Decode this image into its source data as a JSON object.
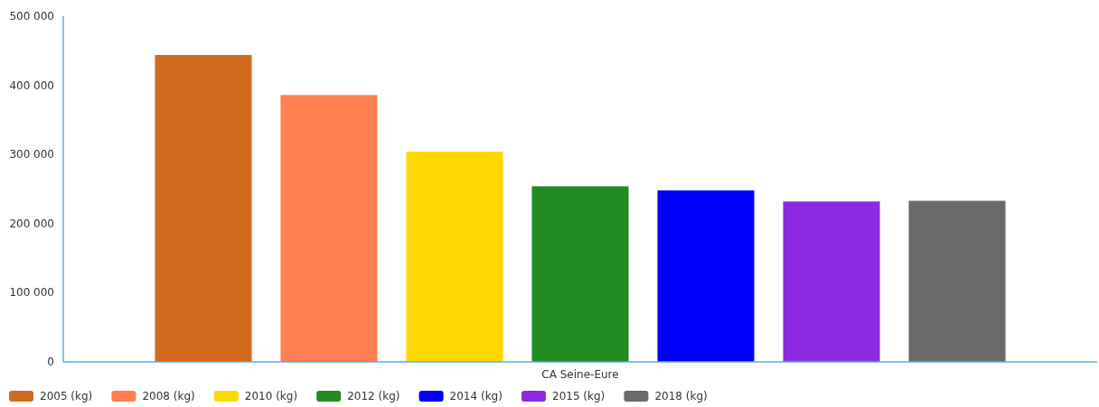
{
  "chart_data": {
    "type": "bar",
    "categories": [
      "CA Seine-Eure"
    ],
    "series": [
      {
        "name": "2005 (kg)",
        "color": "#d2691e",
        "values": [
          444000
        ]
      },
      {
        "name": "2008 (kg)",
        "color": "#ff7f50",
        "values": [
          386000
        ]
      },
      {
        "name": "2010 (kg)",
        "color": "#ffd700",
        "values": [
          304000
        ]
      },
      {
        "name": "2012 (kg)",
        "color": "#228b22",
        "values": [
          254000
        ]
      },
      {
        "name": "2014 (kg)",
        "color": "#0000ff",
        "values": [
          248000
        ]
      },
      {
        "name": "2015 (kg)",
        "color": "#8a2be2",
        "values": [
          232000
        ]
      },
      {
        "name": "2018 (kg)",
        "color": "#696969",
        "values": [
          233000
        ]
      }
    ],
    "ylim": [
      0,
      500000
    ],
    "yticks": [
      {
        "value": 0,
        "label": "0"
      },
      {
        "value": 100000,
        "label": "100 000"
      },
      {
        "value": 200000,
        "label": "200 000"
      },
      {
        "value": 300000,
        "label": "300 000"
      },
      {
        "value": 400000,
        "label": "400 000"
      },
      {
        "value": 500000,
        "label": "500 000"
      }
    ],
    "grid": false,
    "legend": "bottom left"
  }
}
